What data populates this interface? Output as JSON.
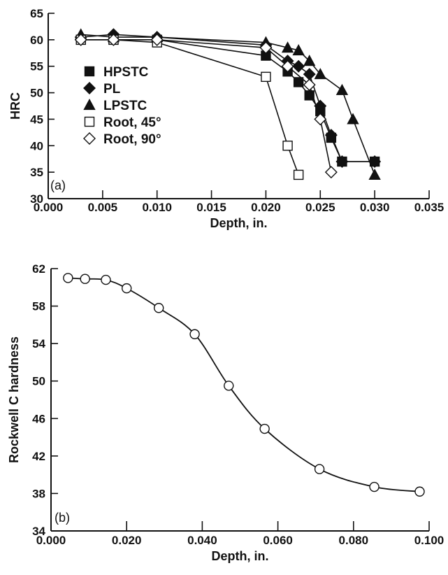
{
  "chart_data": [
    {
      "panel": "(a)",
      "type": "line",
      "xlabel": "Depth, in.",
      "ylabel": "HRC",
      "xlim": [
        0.0,
        0.035
      ],
      "ylim": [
        30,
        65
      ],
      "xticks": [
        "0.000",
        "0.005",
        "0.010",
        "0.015",
        "0.020",
        "0.025",
        "0.030",
        "0.035"
      ],
      "yticks": [
        "30",
        "35",
        "40",
        "45",
        "50",
        "55",
        "60",
        "65"
      ],
      "grid": false,
      "legend_position": "left",
      "series": [
        {
          "name": "HPSTC",
          "marker": "square-filled",
          "x": [
            0.003,
            0.006,
            0.01,
            0.02,
            0.022,
            0.023,
            0.024,
            0.025,
            0.026,
            0.027,
            0.03
          ],
          "y": [
            60.0,
            60.0,
            60.0,
            57.0,
            54.0,
            52.0,
            49.5,
            46.5,
            41.5,
            37.0,
            37.0
          ]
        },
        {
          "name": "PL",
          "marker": "diamond-filled",
          "x": [
            0.003,
            0.006,
            0.01,
            0.02,
            0.022,
            0.023,
            0.024,
            0.025,
            0.026,
            0.027,
            0.03
          ],
          "y": [
            60.5,
            61.0,
            60.5,
            59.0,
            56.0,
            55.0,
            53.5,
            47.5,
            42.0,
            37.0,
            37.0
          ]
        },
        {
          "name": "LPSTC",
          "marker": "triangle-filled",
          "x": [
            0.003,
            0.006,
            0.01,
            0.02,
            0.022,
            0.023,
            0.024,
            0.025,
            0.027,
            0.028,
            0.03
          ],
          "y": [
            61.0,
            60.5,
            60.5,
            59.5,
            58.5,
            58.0,
            56.0,
            53.5,
            50.5,
            45.0,
            34.5
          ]
        },
        {
          "name": "Root, 45°",
          "marker": "square-open",
          "x": [
            0.003,
            0.006,
            0.01,
            0.02,
            0.022,
            0.023
          ],
          "y": [
            60.0,
            60.0,
            59.5,
            53.0,
            40.0,
            34.5
          ]
        },
        {
          "name": "Root, 90°",
          "marker": "diamond-open",
          "x": [
            0.003,
            0.006,
            0.01,
            0.02,
            0.022,
            0.024,
            0.025,
            0.026
          ],
          "y": [
            60.0,
            60.0,
            60.0,
            58.5,
            55.0,
            51.5,
            45.0,
            35.0
          ]
        }
      ]
    },
    {
      "panel": "(b)",
      "type": "line",
      "xlabel": "Depth, in.",
      "ylabel": "Rockwell C hardness",
      "xlim": [
        0.0,
        0.1
      ],
      "ylim": [
        34,
        62
      ],
      "xticks": [
        "0.000",
        "0.020",
        "0.040",
        "0.060",
        "0.080",
        "0.100"
      ],
      "yticks": [
        "34",
        "38",
        "42",
        "46",
        "50",
        "54",
        "58",
        "62"
      ],
      "grid": false,
      "series": [
        {
          "marker": "circle-open",
          "x": [
            0.0045,
            0.009,
            0.0145,
            0.02,
            0.0285,
            0.038,
            0.047,
            0.0565,
            0.071,
            0.0855,
            0.0975
          ],
          "y": [
            61.0,
            60.9,
            60.8,
            59.9,
            57.8,
            55.0,
            49.5,
            44.9,
            40.6,
            38.7,
            38.2
          ]
        }
      ]
    }
  ]
}
